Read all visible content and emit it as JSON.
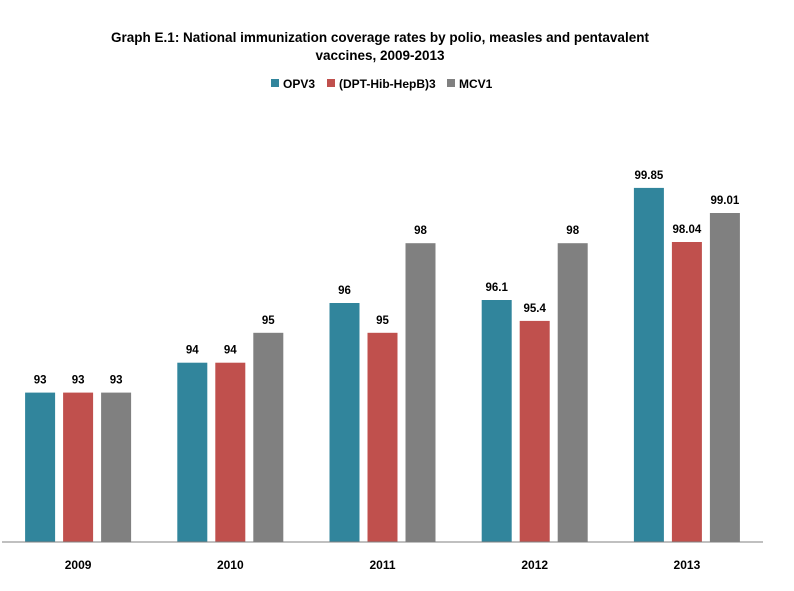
{
  "chart_data": {
    "type": "bar",
    "title_line1": "Graph E.1: National immunization coverage rates by polio, measles and pentavalent",
    "title_line2": "vaccines, 2009-2013",
    "categories": [
      "2009",
      "2010",
      "2011",
      "2012",
      "2013"
    ],
    "series": [
      {
        "name": "OPV3",
        "color": "#31859C",
        "values": [
          93,
          94,
          96,
          96.1,
          99.85
        ],
        "labels": [
          "93",
          "94",
          "96",
          "96.1",
          "99.85"
        ]
      },
      {
        "name": "(DPT-Hib-HepB)3",
        "color": "#C0504D",
        "values": [
          93,
          94,
          95,
          95.4,
          98.04
        ],
        "labels": [
          "93",
          "94",
          "95",
          "95.4",
          "98.04"
        ]
      },
      {
        "name": "MCV1",
        "color": "#808080",
        "values": [
          93,
          95,
          98,
          98,
          99.01
        ],
        "labels": [
          "93",
          "95",
          "98",
          "98",
          "99.01"
        ]
      }
    ],
    "ylim": [
      88,
      100.45
    ],
    "legend_position": "top",
    "grid": false
  }
}
